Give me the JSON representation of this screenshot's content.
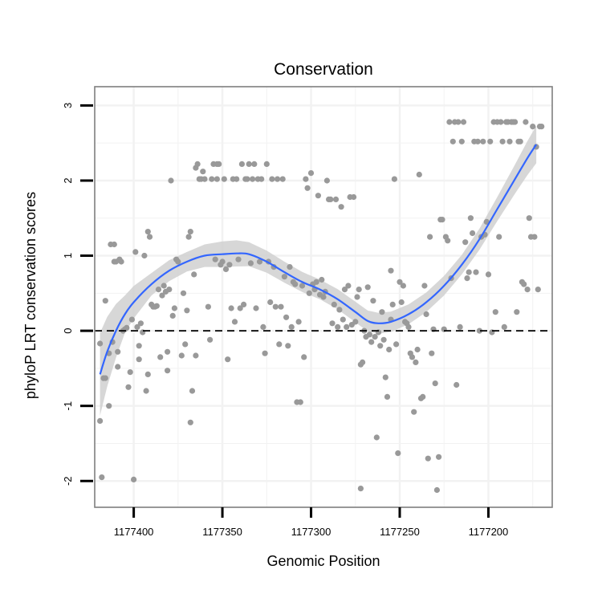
{
  "chart_data": {
    "type": "scatter",
    "title": "Conservation",
    "xlabel": "Genomic Position",
    "ylabel": "phyloP LRT conservation scores",
    "x_reversed": true,
    "xlim": [
      1177422,
      1177164
    ],
    "ylim": [
      -2.35,
      3.25
    ],
    "x_ticks": [
      1177400,
      1177350,
      1177300,
      1177250,
      1177200
    ],
    "x_tick_labels": [
      "1177400",
      "1177350",
      "1177300",
      "1177250",
      "1177200"
    ],
    "y_ticks": [
      -2,
      -1,
      0,
      1,
      2,
      3
    ],
    "y_tick_labels": [
      "-2",
      "-1",
      "0",
      "1",
      "2",
      "3"
    ],
    "reference_line": {
      "y": 0,
      "style": "dashed"
    },
    "grid": true,
    "colors": {
      "points": "#999999",
      "smooth": "#3366ff",
      "ribbon": "#d0d0d0",
      "panel_border": "#7f7f7f",
      "grid": "#f2f2f2"
    },
    "points": [
      [
        1177419,
        -0.17
      ],
      [
        1177419,
        -1.2
      ],
      [
        1177418,
        -1.95
      ],
      [
        1177417,
        -0.63
      ],
      [
        1177416,
        -0.63
      ],
      [
        1177416,
        0.4
      ],
      [
        1177414,
        -0.3
      ],
      [
        1177414,
        -1.0
      ],
      [
        1177413,
        1.15
      ],
      [
        1177412,
        -0.15
      ],
      [
        1177411,
        1.15
      ],
      [
        1177411,
        0.92
      ],
      [
        1177410,
        0.92
      ],
      [
        1177409,
        -0.28
      ],
      [
        1177409,
        -0.48
      ],
      [
        1177408,
        0.95
      ],
      [
        1177407,
        0.92
      ],
      [
        1177406,
        0.0
      ],
      [
        1177405,
        0.02
      ],
      [
        1177404,
        0.04
      ],
      [
        1177403,
        -0.75
      ],
      [
        1177402,
        -0.55
      ],
      [
        1177401,
        0.15
      ],
      [
        1177400,
        -1.98
      ],
      [
        1177399,
        1.05
      ],
      [
        1177398,
        0.05
      ],
      [
        1177397,
        -0.2
      ],
      [
        1177397,
        -0.38
      ],
      [
        1177396,
        0.1
      ],
      [
        1177395,
        -0.02
      ],
      [
        1177394,
        1.0
      ],
      [
        1177393,
        -0.8
      ],
      [
        1177392,
        -0.58
      ],
      [
        1177392,
        1.32
      ],
      [
        1177391,
        1.25
      ],
      [
        1177390,
        0.35
      ],
      [
        1177389,
        0.32
      ],
      [
        1177388,
        0.32
      ],
      [
        1177387,
        0.33
      ],
      [
        1177386,
        0.55
      ],
      [
        1177385,
        -0.35
      ],
      [
        1177384,
        0.47
      ],
      [
        1177383,
        0.6
      ],
      [
        1177382,
        0.52
      ],
      [
        1177381,
        -0.28
      ],
      [
        1177381,
        -0.53
      ],
      [
        1177380,
        0.55
      ],
      [
        1177379,
        2.0
      ],
      [
        1177378,
        0.2
      ],
      [
        1177377,
        0.3
      ],
      [
        1177376,
        0.95
      ],
      [
        1177375,
        0.92
      ],
      [
        1177373,
        -0.33
      ],
      [
        1177372,
        0.5
      ],
      [
        1177371,
        -0.18
      ],
      [
        1177370,
        0.27
      ],
      [
        1177369,
        1.25
      ],
      [
        1177368,
        1.32
      ],
      [
        1177368,
        -1.22
      ],
      [
        1177367,
        -0.8
      ],
      [
        1177366,
        0.75
      ],
      [
        1177365,
        -0.33
      ],
      [
        1177365,
        2.17
      ],
      [
        1177364,
        2.22
      ],
      [
        1177363,
        2.02
      ],
      [
        1177362,
        2.02
      ],
      [
        1177361,
        2.12
      ],
      [
        1177360,
        2.02
      ],
      [
        1177358,
        0.32
      ],
      [
        1177357,
        -0.12
      ],
      [
        1177356,
        2.02
      ],
      [
        1177355,
        2.22
      ],
      [
        1177354,
        0.95
      ],
      [
        1177353,
        2.22
      ],
      [
        1177353,
        2.02
      ],
      [
        1177352,
        2.22
      ],
      [
        1177351,
        0.88
      ],
      [
        1177350,
        0.92
      ],
      [
        1177349,
        2.02
      ],
      [
        1177348,
        0.82
      ],
      [
        1177347,
        -0.38
      ],
      [
        1177346,
        0.88
      ],
      [
        1177345,
        0.3
      ],
      [
        1177344,
        2.02
      ],
      [
        1177343,
        0.12
      ],
      [
        1177342,
        2.02
      ],
      [
        1177341,
        0.95
      ],
      [
        1177340,
        0.3
      ],
      [
        1177339,
        2.22
      ],
      [
        1177338,
        0.35
      ],
      [
        1177337,
        2.02
      ],
      [
        1177336,
        2.02
      ],
      [
        1177335,
        2.22
      ],
      [
        1177334,
        0.9
      ],
      [
        1177333,
        2.02
      ],
      [
        1177332,
        2.22
      ],
      [
        1177331,
        0.3
      ],
      [
        1177330,
        2.02
      ],
      [
        1177329,
        0.92
      ],
      [
        1177328,
        2.02
      ],
      [
        1177327,
        0.05
      ],
      [
        1177326,
        -0.3
      ],
      [
        1177325,
        2.22
      ],
      [
        1177324,
        0.92
      ],
      [
        1177323,
        0.38
      ],
      [
        1177322,
        2.02
      ],
      [
        1177321,
        0.85
      ],
      [
        1177320,
        0.32
      ],
      [
        1177319,
        2.02
      ],
      [
        1177318,
        -0.18
      ],
      [
        1177317,
        0.32
      ],
      [
        1177316,
        2.02
      ],
      [
        1177315,
        0.72
      ],
      [
        1177314,
        0.18
      ],
      [
        1177313,
        -0.2
      ],
      [
        1177312,
        0.85
      ],
      [
        1177311,
        0.05
      ],
      [
        1177310,
        0.65
      ],
      [
        1177309,
        0.62
      ],
      [
        1177308,
        -0.95
      ],
      [
        1177307,
        0.12
      ],
      [
        1177306,
        -0.95
      ],
      [
        1177305,
        0.6
      ],
      [
        1177304,
        -0.35
      ],
      [
        1177303,
        2.02
      ],
      [
        1177302,
        1.9
      ],
      [
        1177301,
        0.5
      ],
      [
        1177300,
        2.1
      ],
      [
        1177299,
        0.62
      ],
      [
        1177298,
        0.55
      ],
      [
        1177297,
        0.65
      ],
      [
        1177296,
        1.8
      ],
      [
        1177295,
        0.48
      ],
      [
        1177294,
        0.68
      ],
      [
        1177293,
        0.45
      ],
      [
        1177292,
        0.52
      ],
      [
        1177291,
        2.0
      ],
      [
        1177290,
        1.75
      ],
      [
        1177289,
        1.75
      ],
      [
        1177288,
        0.1
      ],
      [
        1177287,
        0.35
      ],
      [
        1177286,
        1.75
      ],
      [
        1177285,
        0.05
      ],
      [
        1177284,
        0.28
      ],
      [
        1177283,
        1.65
      ],
      [
        1177282,
        0.15
      ],
      [
        1177281,
        0.55
      ],
      [
        1177280,
        0.05
      ],
      [
        1177279,
        0.6
      ],
      [
        1177278,
        1.78
      ],
      [
        1177277,
        0.08
      ],
      [
        1177276,
        1.78
      ],
      [
        1177275,
        0.12
      ],
      [
        1177274,
        0.45
      ],
      [
        1177273,
        0.55
      ],
      [
        1177272,
        -0.45
      ],
      [
        1177272,
        -2.1
      ],
      [
        1177271,
        -0.42
      ],
      [
        1177270,
        0.0
      ],
      [
        1177269,
        -0.08
      ],
      [
        1177268,
        0.58
      ],
      [
        1177267,
        -0.05
      ],
      [
        1177266,
        -0.15
      ],
      [
        1177265,
        0.4
      ],
      [
        1177264,
        -0.08
      ],
      [
        1177263,
        -1.42
      ],
      [
        1177262,
        -0.02
      ],
      [
        1177261,
        -0.2
      ],
      [
        1177260,
        0.25
      ],
      [
        1177259,
        -0.12
      ],
      [
        1177258,
        -0.62
      ],
      [
        1177257,
        -0.88
      ],
      [
        1177256,
        -0.25
      ],
      [
        1177255,
        0.8
      ],
      [
        1177255,
        0.15
      ],
      [
        1177254,
        0.35
      ],
      [
        1177253,
        2.02
      ],
      [
        1177252,
        -0.18
      ],
      [
        1177251,
        -1.63
      ],
      [
        1177250,
        0.65
      ],
      [
        1177249,
        0.38
      ],
      [
        1177248,
        0.6
      ],
      [
        1177247,
        0.12
      ],
      [
        1177246,
        0.1
      ],
      [
        1177245,
        0.05
      ],
      [
        1177244,
        -0.3
      ],
      [
        1177243,
        -0.35
      ],
      [
        1177242,
        -1.08
      ],
      [
        1177241,
        -0.42
      ],
      [
        1177240,
        -0.25
      ],
      [
        1177239,
        2.08
      ],
      [
        1177238,
        -0.9
      ],
      [
        1177237,
        -0.88
      ],
      [
        1177236,
        0.6
      ],
      [
        1177235,
        0.22
      ],
      [
        1177234,
        -1.7
      ],
      [
        1177233,
        1.25
      ],
      [
        1177232,
        -0.3
      ],
      [
        1177231,
        0.02
      ],
      [
        1177230,
        -0.7
      ],
      [
        1177229,
        -2.12
      ],
      [
        1177228,
        -1.68
      ],
      [
        1177227,
        1.48
      ],
      [
        1177226,
        1.48
      ],
      [
        1177225,
        0.02
      ],
      [
        1177224,
        1.25
      ],
      [
        1177223,
        1.2
      ],
      [
        1177222,
        2.78
      ],
      [
        1177221,
        0.7
      ],
      [
        1177220,
        2.52
      ],
      [
        1177219,
        2.78
      ],
      [
        1177218,
        -0.72
      ],
      [
        1177217,
        2.78
      ],
      [
        1177216,
        0.05
      ],
      [
        1177215,
        2.52
      ],
      [
        1177214,
        2.78
      ],
      [
        1177213,
        1.18
      ],
      [
        1177212,
        0.7
      ],
      [
        1177211,
        0.78
      ],
      [
        1177210,
        1.5
      ],
      [
        1177209,
        1.3
      ],
      [
        1177208,
        2.52
      ],
      [
        1177207,
        0.78
      ],
      [
        1177206,
        2.52
      ],
      [
        1177205,
        0.0
      ],
      [
        1177204,
        1.25
      ],
      [
        1177203,
        2.52
      ],
      [
        1177202,
        1.28
      ],
      [
        1177201,
        1.45
      ],
      [
        1177200,
        0.75
      ],
      [
        1177199,
        2.52
      ],
      [
        1177198,
        -0.02
      ],
      [
        1177197,
        2.78
      ],
      [
        1177196,
        0.25
      ],
      [
        1177195,
        2.78
      ],
      [
        1177194,
        1.25
      ],
      [
        1177193,
        2.78
      ],
      [
        1177192,
        2.52
      ],
      [
        1177191,
        0.05
      ],
      [
        1177190,
        2.78
      ],
      [
        1177189,
        2.78
      ],
      [
        1177188,
        2.52
      ],
      [
        1177187,
        2.78
      ],
      [
        1177186,
        2.78
      ],
      [
        1177185,
        2.78
      ],
      [
        1177184,
        0.25
      ],
      [
        1177183,
        2.52
      ],
      [
        1177182,
        2.52
      ],
      [
        1177181,
        0.65
      ],
      [
        1177180,
        0.62
      ],
      [
        1177179,
        2.78
      ],
      [
        1177178,
        0.55
      ],
      [
        1177177,
        1.5
      ],
      [
        1177176,
        1.25
      ],
      [
        1177175,
        2.72
      ],
      [
        1177174,
        1.25
      ],
      [
        1177173,
        2.45
      ],
      [
        1177172,
        0.55
      ],
      [
        1177171,
        2.72
      ],
      [
        1177170,
        2.72
      ]
    ],
    "smooth_line": [
      [
        1177419,
        -0.58
      ],
      [
        1177415,
        -0.28
      ],
      [
        1177410,
        0.0
      ],
      [
        1177405,
        0.22
      ],
      [
        1177400,
        0.38
      ],
      [
        1177390,
        0.62
      ],
      [
        1177380,
        0.8
      ],
      [
        1177370,
        0.92
      ],
      [
        1177360,
        1.0
      ],
      [
        1177350,
        1.02
      ],
      [
        1177342,
        1.03
      ],
      [
        1177335,
        1.02
      ],
      [
        1177325,
        0.92
      ],
      [
        1177315,
        0.78
      ],
      [
        1177305,
        0.65
      ],
      [
        1177295,
        0.55
      ],
      [
        1177285,
        0.42
      ],
      [
        1177275,
        0.25
      ],
      [
        1177268,
        0.13
      ],
      [
        1177262,
        0.1
      ],
      [
        1177255,
        0.12
      ],
      [
        1177245,
        0.22
      ],
      [
        1177235,
        0.38
      ],
      [
        1177225,
        0.6
      ],
      [
        1177215,
        0.88
      ],
      [
        1177205,
        1.22
      ],
      [
        1177195,
        1.62
      ],
      [
        1177185,
        2.02
      ],
      [
        1177178,
        2.3
      ],
      [
        1177173,
        2.48
      ]
    ],
    "ribbon_width": [
      [
        1177419,
        0.55
      ],
      [
        1177405,
        0.25
      ],
      [
        1177390,
        0.15
      ],
      [
        1177370,
        0.13
      ],
      [
        1177345,
        0.18
      ],
      [
        1177330,
        0.15
      ],
      [
        1177300,
        0.13
      ],
      [
        1177265,
        0.14
      ],
      [
        1177240,
        0.13
      ],
      [
        1177210,
        0.13
      ],
      [
        1177190,
        0.17
      ],
      [
        1177173,
        0.25
      ]
    ]
  }
}
